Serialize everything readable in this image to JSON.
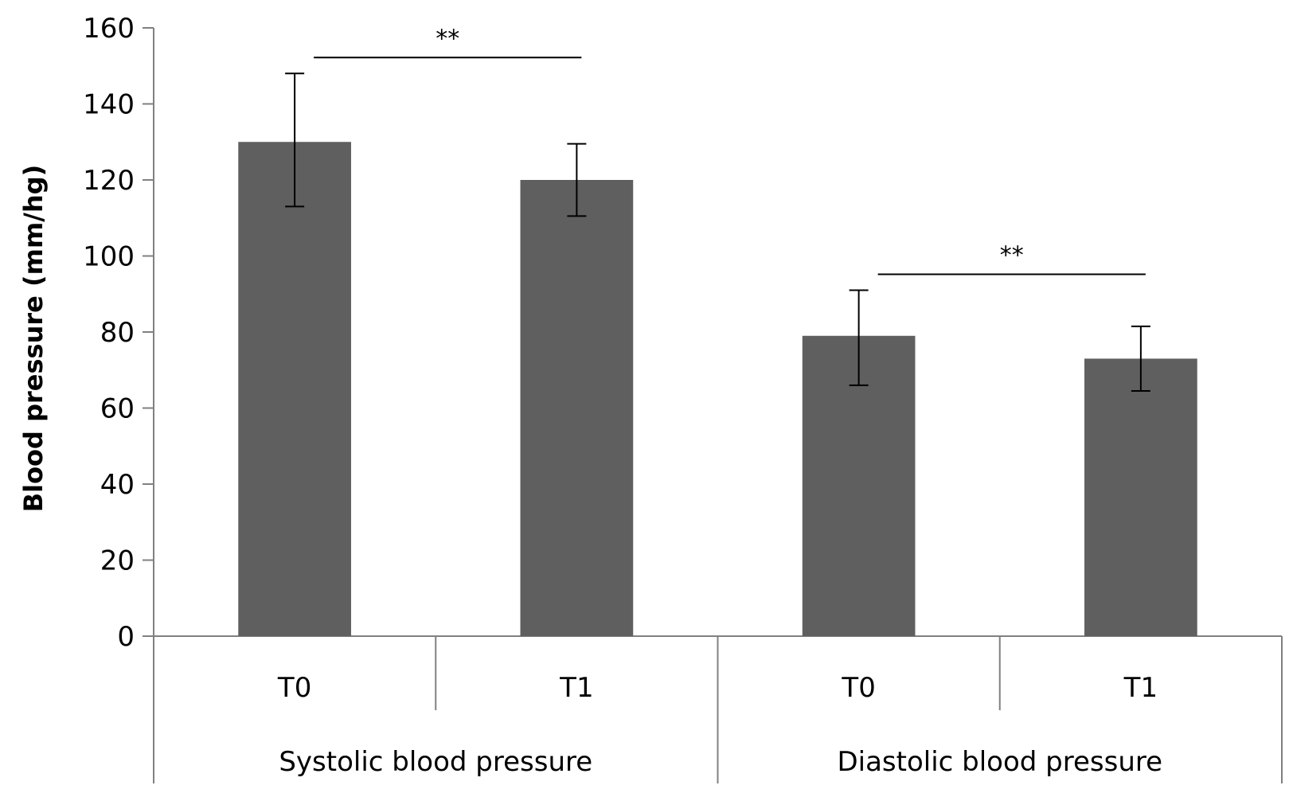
{
  "chart_data": {
    "type": "bar",
    "title": "",
    "xlabel": "",
    "ylabel": "Blood pressure (mm/hg)",
    "ylim": [
      0,
      160
    ],
    "yticks": [
      0,
      20,
      40,
      60,
      80,
      100,
      120,
      140,
      160
    ],
    "bar_color": "#5f5f5f",
    "groups": [
      {
        "name": "Systolic blood pressure",
        "bars": [
          {
            "category": "T0",
            "value": 130,
            "err_low": 113,
            "err_high": 148
          },
          {
            "category": "T1",
            "value": 120,
            "err_low": 110.5,
            "err_high": 129.5
          }
        ],
        "significance": "**"
      },
      {
        "name": "Diastolic blood pressure",
        "bars": [
          {
            "category": "T0",
            "value": 79,
            "err_low": 66,
            "err_high": 91
          },
          {
            "category": "T1",
            "value": 73,
            "err_low": 64.5,
            "err_high": 81.5
          }
        ],
        "significance": "**"
      }
    ]
  }
}
